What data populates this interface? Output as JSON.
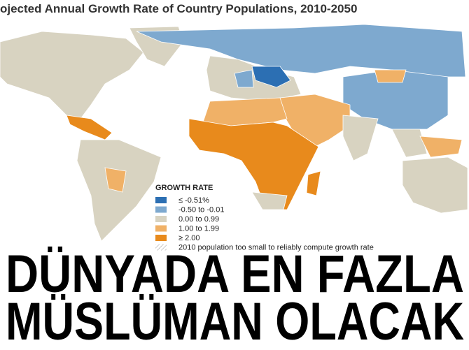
{
  "map": {
    "title": "ojected Annual Growth Rate of Country Populations, 2010-2050",
    "legend": {
      "title": "GROWTH RATE",
      "items": [
        {
          "label": "≤ -0.51%",
          "color": "#2c6fb3"
        },
        {
          "label": "-0.50 to -0.01",
          "color": "#7ea9cf"
        },
        {
          "label": "0.00 to 0.99",
          "color": "#d8d3c1"
        },
        {
          "label": "1.00 to 1.99",
          "color": "#f0b167"
        },
        {
          "label": "≥ 2.00",
          "color": "#e88a1c"
        },
        {
          "label": "2010 population too small to reliably compute growth rate",
          "color": "hatch"
        }
      ]
    }
  },
  "headline": {
    "lines": [
      "DÜNYADA EN FAZLA",
      "MÜSLÜMAN OLACAK"
    ]
  }
}
